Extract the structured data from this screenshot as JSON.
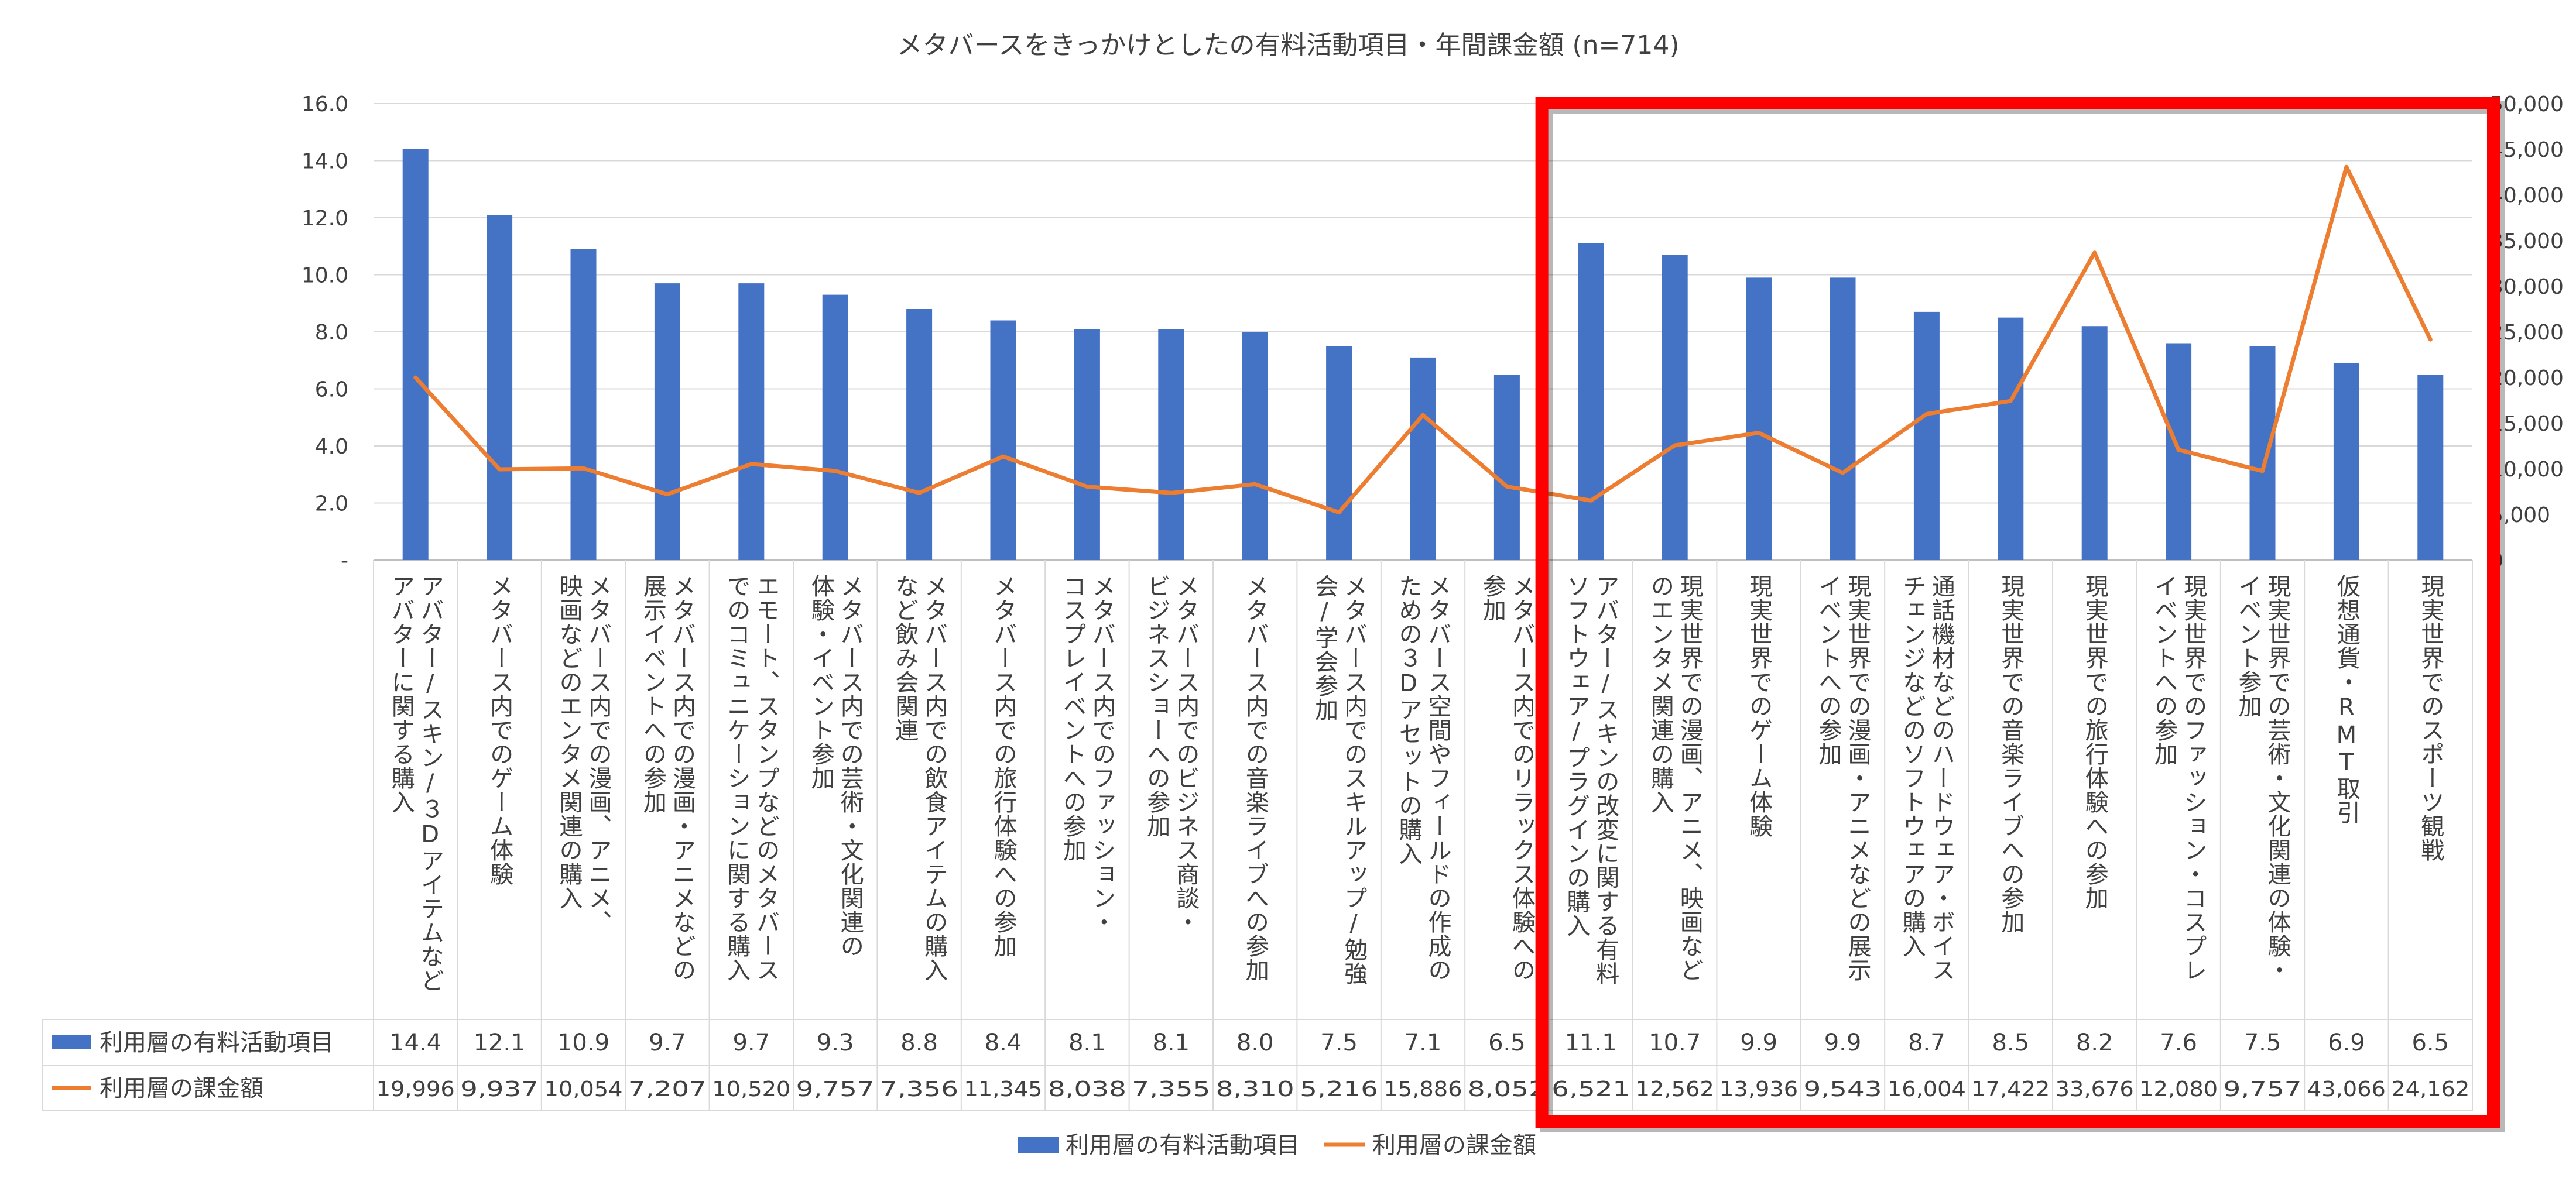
{
  "chart_data": {
    "type": "bar+line",
    "title": "メタバースをきっかけとしたの有料活動項目・年間課金額 (n=714)",
    "categories": [
      [
        "アバター/スキン/３Dアイテムなど",
        "アバターに関する購入"
      ],
      [
        "メタバース内でのゲーム体験"
      ],
      [
        "メタバース内での漫画、アニメ、",
        "映画などのエンタメ関連の購入"
      ],
      [
        "メタバース内での漫画・アニメなどの",
        "展示イベントへの参加"
      ],
      [
        "エモート、スタンプなどのメタバース",
        "でのコミュニケーションに関する購入"
      ],
      [
        "メタバース内での芸術・文化関連の",
        "体験・イベント参加"
      ],
      [
        "メタバース内での飲食アイテムの購入",
        "など飲み会関連"
      ],
      [
        "メタバース内での旅行体験への参加"
      ],
      [
        "メタバース内でのファッション・",
        "コスプレイベントへの参加"
      ],
      [
        "メタバース内でのビジネス商談・",
        "ビジネスショーへの参加"
      ],
      [
        "メタバース内での音楽ライブへの参加"
      ],
      [
        "メタバース内でのスキルアップ/勉強",
        "会/学会参加"
      ],
      [
        "メタバース空間やフィールドの作成の",
        "ための３Dアセットの購入"
      ],
      [
        "メタバース内でのリラックス体験への",
        "参加"
      ],
      [
        "アバター/スキンの改変に関する有料",
        "ソフトウェア/プラグインの購入"
      ],
      [
        "現実世界での漫画、アニメ、映画など",
        "のエンタメ関連の購入"
      ],
      [
        "現実世界でのゲーム体験"
      ],
      [
        "現実世界での漫画・アニメなどの展示",
        "イベントへの参加"
      ],
      [
        "通話機材などのハードウェア・ボイス",
        "チェンジなどのソフトウェアの購入"
      ],
      [
        "現実世界での音楽ライブへの参加"
      ],
      [
        "現実世界での旅行体験への参加"
      ],
      [
        "現実世界でのファッション・コスプレ",
        "イベントへの参加"
      ],
      [
        "現実世界での芸術・文化関連の体験・",
        "イベント参加"
      ],
      [
        "仮想通貨・RMT取引"
      ],
      [
        "現実世界でのスポーツ観戦"
      ]
    ],
    "series": [
      {
        "name": "利用層の有料活動項目",
        "type": "bar",
        "axis": "left",
        "color": "#4472c4",
        "values": [
          14.4,
          12.1,
          10.9,
          9.7,
          9.7,
          9.3,
          8.8,
          8.4,
          8.1,
          8.1,
          8.0,
          7.5,
          7.1,
          6.5,
          11.1,
          10.7,
          9.9,
          9.9,
          8.7,
          8.5,
          8.2,
          7.6,
          7.5,
          6.9,
          6.5
        ],
        "labels": [
          "14.4",
          "12.1",
          "10.9",
          "9.7",
          "9.7",
          "9.3",
          "8.8",
          "8.4",
          "8.1",
          "8.1",
          "8.0",
          "7.5",
          "7.1",
          "6.5",
          "11.1",
          "10.7",
          "9.9",
          "9.9",
          "8.7",
          "8.5",
          "8.2",
          "7.6",
          "7.5",
          "6.9",
          "6.5"
        ]
      },
      {
        "name": "利用層の課金額",
        "type": "line",
        "axis": "right",
        "color": "#ed7d31",
        "values": [
          19996,
          9937,
          10054,
          7207,
          10520,
          9757,
          7356,
          11345,
          8038,
          7355,
          8310,
          5216,
          15886,
          8052,
          6521,
          12562,
          13936,
          9543,
          16004,
          17422,
          33676,
          12080,
          9757,
          43066,
          24162
        ],
        "labels": [
          "19,996",
          "9,937",
          "10,054",
          "7,207",
          "10,520",
          "9,757",
          "7,356",
          "11,345",
          "8,038",
          "7,355",
          "8,310",
          "5,216",
          "15,886",
          "8,052",
          "6,521",
          "12,562",
          "13,936",
          "9,543",
          "16,004",
          "17,422",
          "33,676",
          "12,080",
          "9,757",
          "43,066",
          "24,162"
        ]
      }
    ],
    "y_left": {
      "ylim": [
        0,
        16
      ],
      "ticks": [
        "-",
        "2.0",
        "4.0",
        "6.0",
        "8.0",
        "10.0",
        "12.0",
        "14.0",
        "16.0"
      ]
    },
    "y_right": {
      "ylim": [
        0,
        50000
      ],
      "ticks": [
        "0",
        "5,000",
        "10,000",
        "15,000",
        "20,000",
        "25,000",
        "30,000",
        "35,000",
        "40,000",
        "45,000",
        "50,000"
      ]
    },
    "grid": true,
    "legend": {
      "position": "bottom",
      "items": [
        "利用層の有料活動項目",
        "利用層の課金額"
      ]
    },
    "data_table": true,
    "highlight": {
      "shape": "rectangle",
      "color": "#ff0000",
      "from_category": 14,
      "to_category": 24
    }
  }
}
